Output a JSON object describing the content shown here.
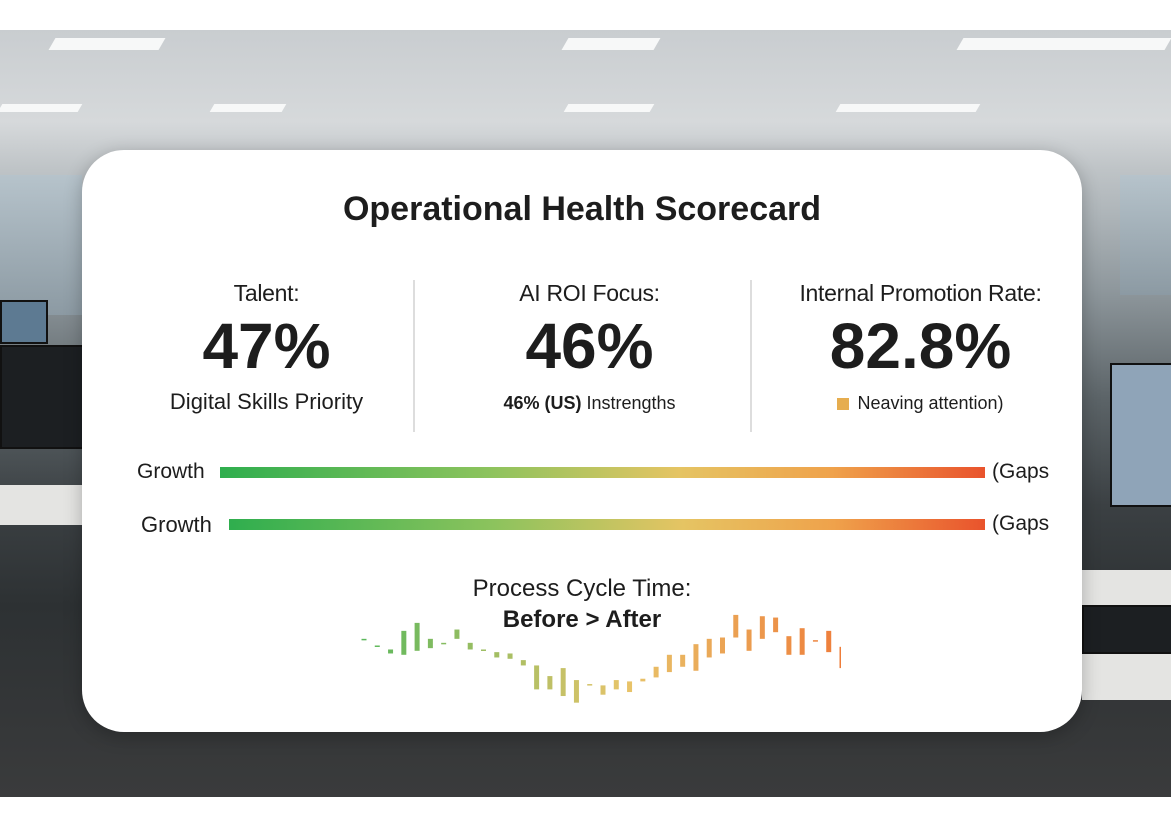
{
  "card": {
    "title": "Operational Health Scorecard",
    "kpis": [
      {
        "label": "Talent:",
        "value": "47%",
        "subtitle": "Digital Skills Priority"
      },
      {
        "label": "AI ROI Focus:",
        "value": "46%",
        "subtitle_bold": "46% (US)",
        "subtitle": "Instrengths"
      },
      {
        "label": "Internal Promotion Rate:",
        "value": "82.8%",
        "subtitle": "Neaving attention)",
        "swatch_color": "#e6ad4f"
      }
    ],
    "gradient_bars": [
      {
        "left_label": "Growth",
        "right_label": "(Gaps"
      },
      {
        "left_label": "Growth",
        "right_label": "(Gaps"
      }
    ],
    "gradient_colors": [
      "#2fae4e",
      "#8cc35d",
      "#e5c463",
      "#efa24b",
      "#e9532c"
    ]
  },
  "chart_data": {
    "type": "candlestick",
    "title_line1": "Process Cycle Time:",
    "title_line2": "Before > After",
    "ranges": [
      [
        51,
        52
      ],
      [
        46,
        47
      ],
      [
        41,
        44
      ],
      [
        40,
        58
      ],
      [
        43,
        64
      ],
      [
        45,
        52
      ],
      [
        48,
        49
      ],
      [
        52,
        59
      ],
      [
        44,
        49
      ],
      [
        43,
        44
      ],
      [
        38,
        42
      ],
      [
        37,
        41
      ],
      [
        32,
        36
      ],
      [
        14,
        32
      ],
      [
        14,
        24
      ],
      [
        9,
        30
      ],
      [
        4,
        21
      ],
      [
        17,
        18
      ],
      [
        10,
        17
      ],
      [
        14,
        21
      ],
      [
        12,
        20
      ],
      [
        20,
        22
      ],
      [
        23,
        31
      ],
      [
        27,
        40
      ],
      [
        31,
        40
      ],
      [
        28,
        48
      ],
      [
        38,
        52
      ],
      [
        41,
        53
      ],
      [
        53,
        70
      ],
      [
        43,
        59
      ],
      [
        52,
        69
      ],
      [
        57,
        68
      ],
      [
        40,
        54
      ],
      [
        40,
        60
      ],
      [
        50,
        51
      ],
      [
        42,
        58
      ],
      [
        30,
        46
      ]
    ],
    "color_start": "#5cb85c",
    "color_mid": "#e8c46a",
    "color_end": "#ee7d3a",
    "ylim": [
      0,
      100
    ]
  }
}
